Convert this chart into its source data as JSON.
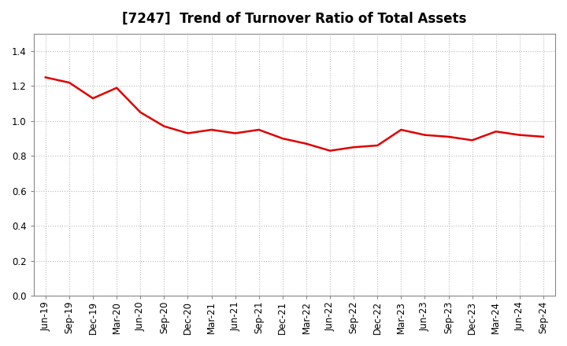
{
  "title": "[7247]  Trend of Turnover Ratio of Total Assets",
  "line_color": "#e00000",
  "line_width": 1.8,
  "background_color": "#ffffff",
  "grid_color": "#bbbbbb",
  "ylim": [
    0.0,
    1.5
  ],
  "yticks": [
    0.0,
    0.2,
    0.4,
    0.6,
    0.8,
    1.0,
    1.2,
    1.4
  ],
  "labels": [
    "Jun-19",
    "Sep-19",
    "Dec-19",
    "Mar-20",
    "Jun-20",
    "Sep-20",
    "Dec-20",
    "Mar-21",
    "Jun-21",
    "Sep-21",
    "Dec-21",
    "Mar-22",
    "Jun-22",
    "Sep-22",
    "Dec-22",
    "Mar-23",
    "Jun-23",
    "Sep-23",
    "Dec-23",
    "Mar-24",
    "Jun-24",
    "Sep-24"
  ],
  "values": [
    1.25,
    1.22,
    1.13,
    1.19,
    1.05,
    0.97,
    0.93,
    0.95,
    0.93,
    0.95,
    0.9,
    0.87,
    0.83,
    0.85,
    0.86,
    0.95,
    0.92,
    0.91,
    0.89,
    0.94,
    0.92,
    0.91
  ],
  "title_fontsize": 12,
  "tick_fontsize": 8.5,
  "fig_width": 7.2,
  "fig_height": 4.4,
  "dpi": 100
}
